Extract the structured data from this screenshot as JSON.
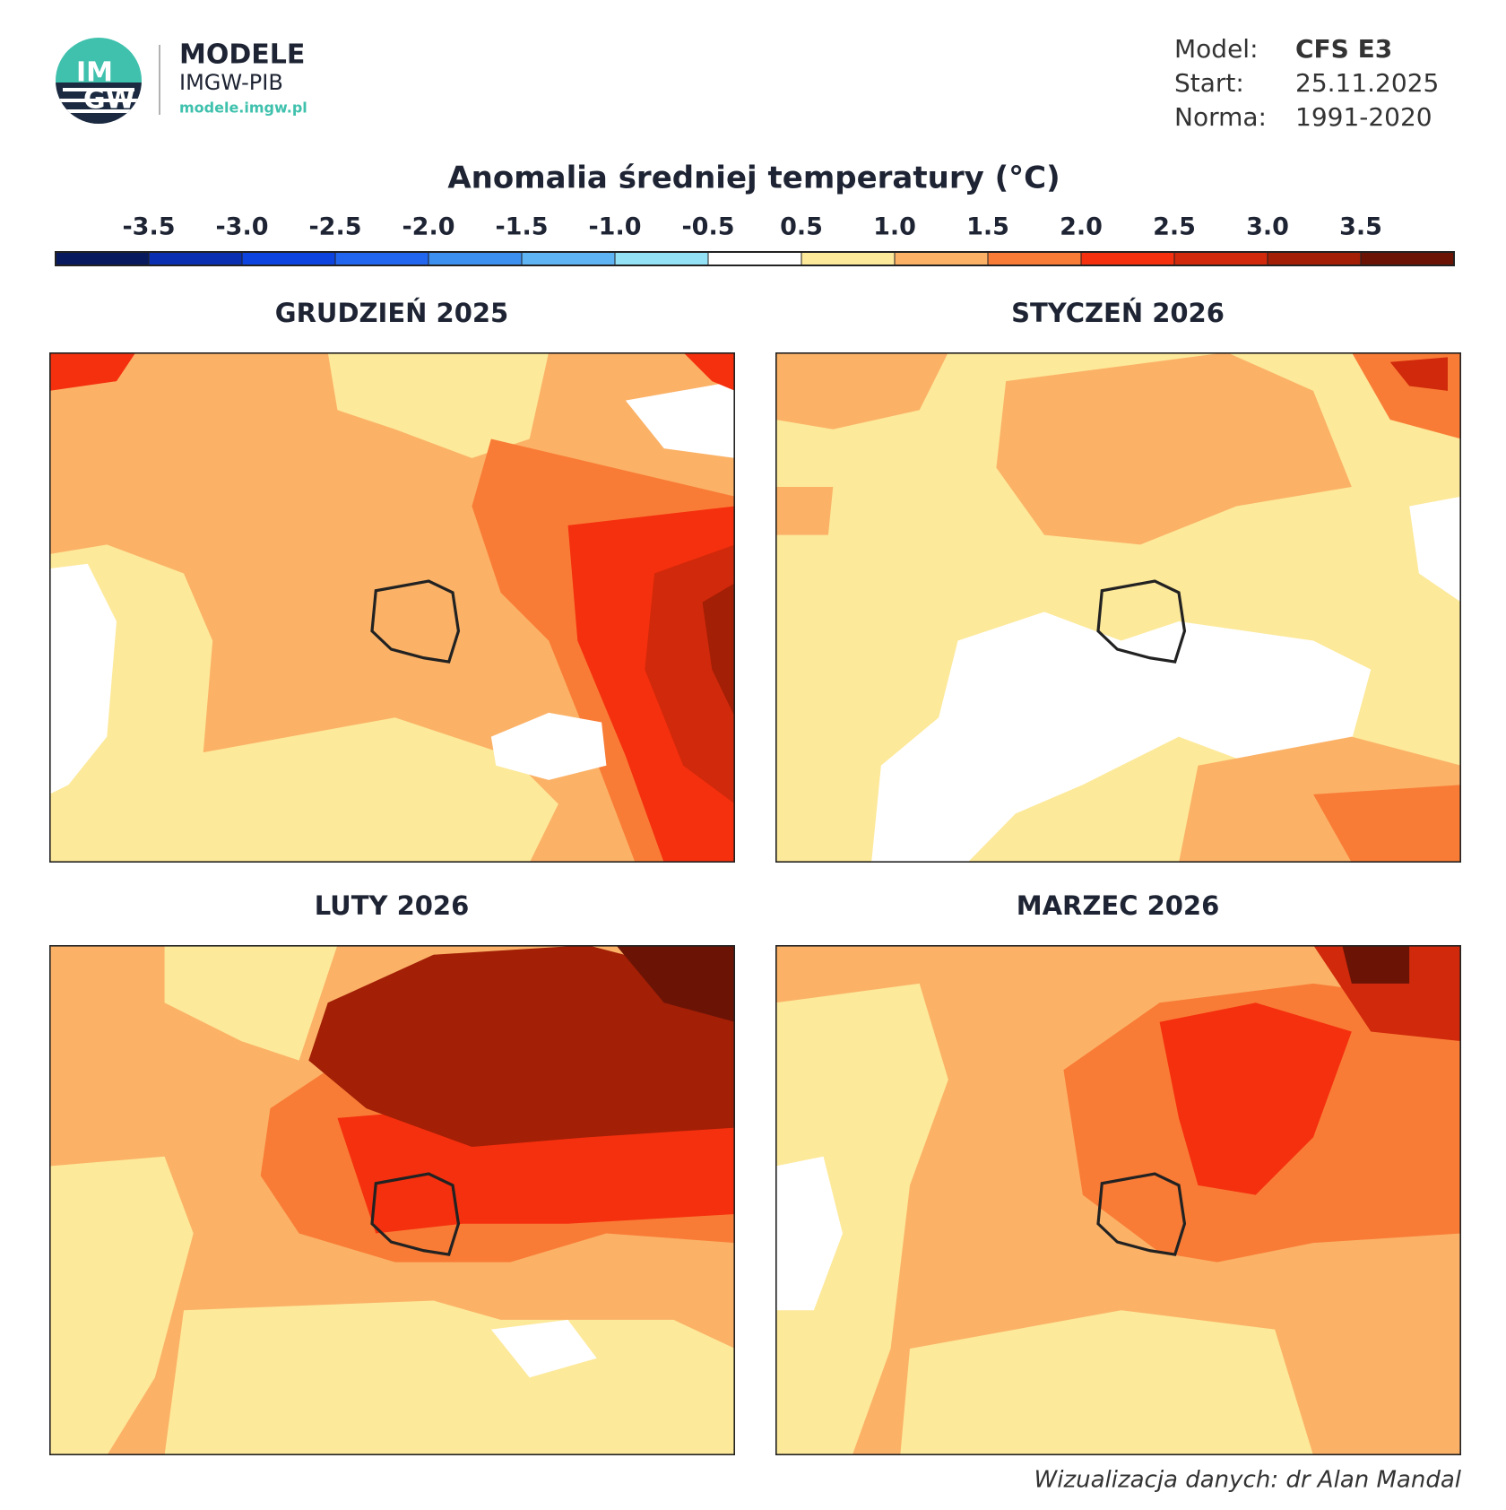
{
  "header": {
    "logo": {
      "line1": "IM",
      "line2": "GW"
    },
    "brand": "MODELE",
    "institute": "IMGW-PIB",
    "url": "modele.imgw.pl",
    "info": [
      {
        "label": "Model:",
        "value": "CFS E3"
      },
      {
        "label": "Start:",
        "value": "25.11.2025"
      },
      {
        "label": "Norma:",
        "value": "1991-2020"
      }
    ]
  },
  "title": "Anomalia średniej temperatury (°C)",
  "colorbar": {
    "ticks": [
      -3.5,
      {
        "value": -3,
        "label": "-3.0"
      },
      -2.5,
      {
        "value": -2,
        "label": "-2.0"
      },
      -1.5,
      {
        "value": -1,
        "label": "-1.0"
      },
      -0.5,
      0.5,
      {
        "value": 1,
        "label": "1.0"
      },
      1.5,
      {
        "value": 2,
        "label": "2.0"
      },
      2.5,
      {
        "value": 3,
        "label": "3.0"
      },
      3.5
    ],
    "colors": [
      "#08195e",
      "#0a2fb0",
      "#0d44e0",
      "#2266f0",
      "#3d8ff0",
      "#5fb4f4",
      "#94e2f6",
      "#ffffff",
      "#fde99a",
      "#fbb267",
      "#f97c36",
      "#f5300e",
      "#d1290b",
      "#a31f06",
      "#6b1406"
    ]
  },
  "panels": [
    {
      "title": "GRUDZIEŃ 2025"
    },
    {
      "title": "STYCZEŃ 2026"
    },
    {
      "title": "LUTY 2026"
    },
    {
      "title": "MARZEC 2026"
    }
  ],
  "credit": "Wizualizacja danych: dr Alan Mandal"
}
